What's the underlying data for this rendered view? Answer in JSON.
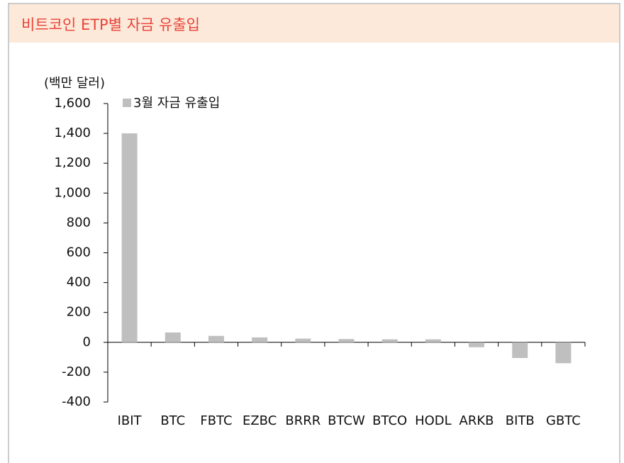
{
  "chart_data": {
    "type": "bar",
    "title": "비트코인 ETP별 자금 유출입",
    "y_label": "(백만 달러)",
    "categories": [
      "IBIT",
      "BTC",
      "FBTC",
      "EZBC",
      "BRRR",
      "BTCW",
      "BTCO",
      "HODL",
      "ARKB",
      "BITB",
      "GBTC"
    ],
    "series": [
      {
        "name": "3월 자금 유출입",
        "color": "#bfbfbf",
        "values": [
          1400,
          66,
          43,
          33,
          25,
          22,
          20,
          20,
          -33,
          -105,
          -140
        ]
      }
    ],
    "ylim": [
      -400,
      1600
    ],
    "yticks": [
      -400,
      -200,
      0,
      200,
      400,
      600,
      800,
      {
        "value": 1000,
        "label": "1,000"
      },
      {
        "value": 1200,
        "label": "1,200"
      },
      {
        "value": 1400,
        "label": "1,400"
      },
      {
        "value": 1600,
        "label": "1,600"
      }
    ],
    "legend": "top-left"
  }
}
